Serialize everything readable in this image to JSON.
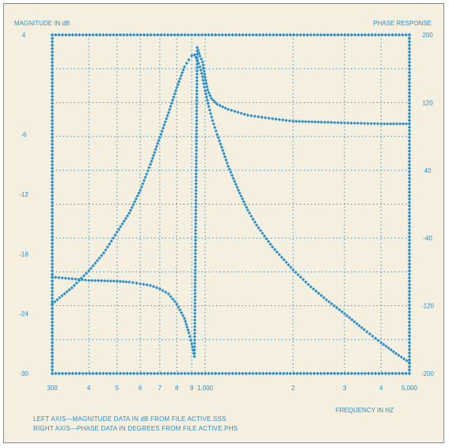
{
  "chart_data": {
    "type": "line",
    "title_left": "MAGNITUDE IN dB",
    "title_right": "PHASE RESPONSE",
    "xlabel": "FREQUENCY IN HZ",
    "x_scale": "log",
    "xlim": [
      300,
      5000
    ],
    "x_ticks": [
      300,
      400,
      500,
      600,
      700,
      800,
      900,
      1000,
      2000,
      3000,
      4000,
      5000
    ],
    "x_tick_labels": [
      "300",
      "4",
      "5",
      "6",
      "7",
      "8",
      "9",
      "1,000",
      "2",
      "3",
      "4",
      "5,000"
    ],
    "y_left_lim": [
      -30,
      4
    ],
    "y_left_ticks": [
      4,
      -6,
      -12,
      -18,
      -24,
      -30
    ],
    "y_left_tick_labels": [
      "4",
      "-6",
      "-12",
      "-18",
      "-24",
      "-30"
    ],
    "y_right_lim": [
      -200,
      200
    ],
    "y_right_ticks": [
      200,
      120,
      40,
      -40,
      -120,
      -200
    ],
    "y_right_tick_labels": [
      "200",
      "120",
      "40",
      "-40",
      "-120",
      "-200"
    ],
    "grid": true,
    "series": [
      {
        "axis": "left",
        "x": [
          300,
          350,
          400,
          450,
          500,
          550,
          600,
          650,
          700,
          750,
          800,
          850,
          880,
          900,
          920,
          940,
          960,
          980,
          1000,
          1030,
          1060,
          1100,
          1150,
          1200,
          1300,
          1400,
          1500,
          1700,
          2000,
          2300,
          2600,
          3000,
          3500,
          4000,
          4500,
          5000
        ],
        "y": [
          -23.0,
          -21.4,
          -19.7,
          -17.9,
          -15.8,
          -13.9,
          -11.6,
          -9.0,
          -6.3,
          -3.8,
          -1.3,
          0.8,
          1.5,
          1.9,
          2.0,
          1.5,
          0.8,
          -0.2,
          -1.6,
          -3.2,
          -4.6,
          -6.0,
          -7.6,
          -9.2,
          -11.6,
          -13.6,
          -15.1,
          -17.3,
          -19.6,
          -21.3,
          -22.6,
          -24.0,
          -25.6,
          -26.9,
          -28.0,
          -28.9
        ]
      },
      {
        "axis": "right",
        "x": [
          300,
          400,
          500,
          550,
          600,
          650,
          700,
          750,
          800,
          850,
          880,
          900,
          920,
          940,
          960,
          980,
          1000,
          1020,
          1050,
          1100,
          1200,
          1400,
          1700,
          2000,
          2500,
          3000,
          4000,
          5000
        ],
        "y": [
          -86,
          -90,
          -91,
          -92,
          -94,
          -96,
          -100,
          -106,
          -118,
          -135,
          -152,
          -165,
          -180,
          185,
          175,
          168,
          150,
          135,
          125,
          118,
          112,
          105,
          101,
          98,
          97,
          96,
          95,
          95
        ]
      }
    ]
  },
  "footnotes": {
    "line1": "LEFT AXIS—MAGNITUDE DATA IN dB FROM FILE ACTIVE.SSS",
    "line2": "RIGHT AXIS—PHASE DATA IN DEGREES FROM FILE ACTIVE.PHS"
  },
  "colors": {
    "ink": "#2a8fc9",
    "paper": "#f4efdf"
  }
}
